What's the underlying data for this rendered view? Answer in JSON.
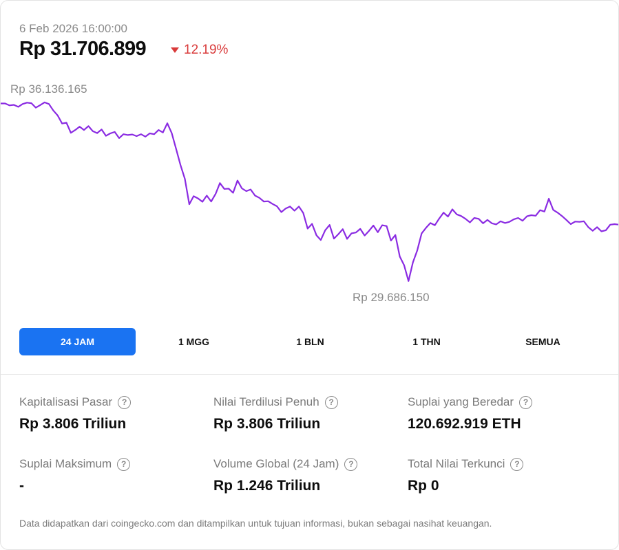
{
  "header": {
    "timestamp": "6 Feb 2026 16:00:00",
    "price": "Rp 31.706.899",
    "change": "12.19%",
    "change_direction": "down",
    "change_color": "#d93a3a"
  },
  "chart_data": {
    "type": "line",
    "series": [
      {
        "color": "#8a2be2",
        "values": [
          36050000,
          36050000,
          35980000,
          36000000,
          35930000,
          36030000,
          36080000,
          36060000,
          35900000,
          35990000,
          36090000,
          36030000,
          35800000,
          35620000,
          35330000,
          35360000,
          35000000,
          35100000,
          35220000,
          35100000,
          35240000,
          35060000,
          34990000,
          35120000,
          34890000,
          34980000,
          35030000,
          34810000,
          34950000,
          34920000,
          34940000,
          34880000,
          34950000,
          34860000,
          34980000,
          34950000,
          35100000,
          35010000,
          35340000,
          34990000,
          34420000,
          33850000,
          33350000,
          32440000,
          32730000,
          32650000,
          32530000,
          32750000,
          32540000,
          32810000,
          33200000,
          32990000,
          33000000,
          32850000,
          33290000,
          33010000,
          32910000,
          32970000,
          32750000,
          32670000,
          32540000,
          32550000,
          32450000,
          32370000,
          32160000,
          32290000,
          32360000,
          32210000,
          32360000,
          32130000,
          31570000,
          31740000,
          31330000,
          31160000,
          31510000,
          31700000,
          31210000,
          31370000,
          31550000,
          31200000,
          31400000,
          31430000,
          31560000,
          31320000,
          31490000,
          31680000,
          31440000,
          31690000,
          31660000,
          31140000,
          31340000,
          30570000,
          30260000,
          29690000,
          30360000,
          30790000,
          31400000,
          31600000,
          31770000,
          31690000,
          31930000,
          32140000,
          32000000,
          32260000,
          32080000,
          32020000,
          31920000,
          31790000,
          31950000,
          31920000,
          31760000,
          31880000,
          31760000,
          31720000,
          31830000,
          31770000,
          31810000,
          31900000,
          31950000,
          31850000,
          32010000,
          32050000,
          32030000,
          32230000,
          32180000,
          32640000,
          32240000,
          32140000,
          32020000,
          31880000,
          31730000,
          31820000,
          31810000,
          31830000,
          31620000,
          31490000,
          31620000,
          31470000,
          31510000,
          31710000,
          31730000,
          31710000
        ]
      }
    ],
    "ylim": [
      29686150,
      36136165
    ],
    "high_label": "Rp 36.136.165",
    "low_label": "Rp 29.686.150"
  },
  "timeframes": [
    {
      "label": "24 JAM",
      "active": true
    },
    {
      "label": "1 MGG",
      "active": false
    },
    {
      "label": "1 BLN",
      "active": false
    },
    {
      "label": "1 THN",
      "active": false
    },
    {
      "label": "SEMUA",
      "active": false
    }
  ],
  "stats": {
    "market_cap": {
      "label": "Kapitalisasi Pasar",
      "value": "Rp 3.806 Triliun"
    },
    "fully_diluted": {
      "label": "Nilai Terdilusi Penuh",
      "value": "Rp 3.806 Triliun"
    },
    "circulating_supply": {
      "label": "Suplai yang Beredar",
      "value": "120.692.919 ETH"
    },
    "max_supply": {
      "label": "Suplai Maksimum",
      "value": "-"
    },
    "global_volume": {
      "label": "Volume Global (24 Jam)",
      "value": "Rp 1.246 Triliun"
    },
    "total_value_locked": {
      "label": "Total Nilai Terkunci",
      "value": "Rp 0"
    }
  },
  "help_glyph": "?",
  "footer": "Data didapatkan dari coingecko.com dan ditampilkan untuk tujuan informasi, bukan sebagai nasihat keuangan."
}
